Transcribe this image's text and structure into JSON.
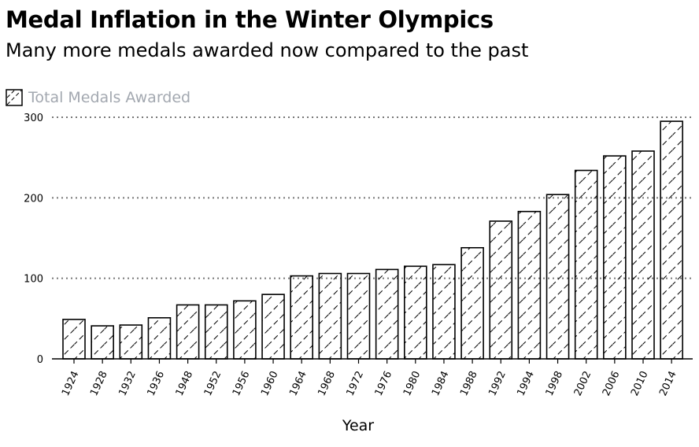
{
  "chart_data": {
    "type": "bar",
    "title": "Medal Inflation in the Winter Olympics",
    "subtitle": "Many more medals awarded now compared to the past",
    "xlabel": "Year",
    "ylabel": "",
    "ylim": [
      0,
      300
    ],
    "yticks": [
      0,
      100,
      200,
      300
    ],
    "grid": true,
    "legend_position": "top-left",
    "series": [
      {
        "name": "Total Medals Awarded",
        "fill": "hatched",
        "values": [
          49,
          41,
          42,
          51,
          67,
          67,
          72,
          80,
          103,
          106,
          106,
          111,
          115,
          117,
          138,
          171,
          183,
          204,
          234,
          252,
          258,
          295
        ]
      }
    ],
    "categories": [
      "1924",
      "1928",
      "1932",
      "1936",
      "1948",
      "1952",
      "1956",
      "1960",
      "1964",
      "1968",
      "1972",
      "1976",
      "1980",
      "1984",
      "1988",
      "1992",
      "1994",
      "1998",
      "2002",
      "2006",
      "2010",
      "2014"
    ],
    "colors": {
      "bar_stroke": "#000000",
      "grid": "#777777",
      "legend_text": "#a3a8b0"
    }
  }
}
